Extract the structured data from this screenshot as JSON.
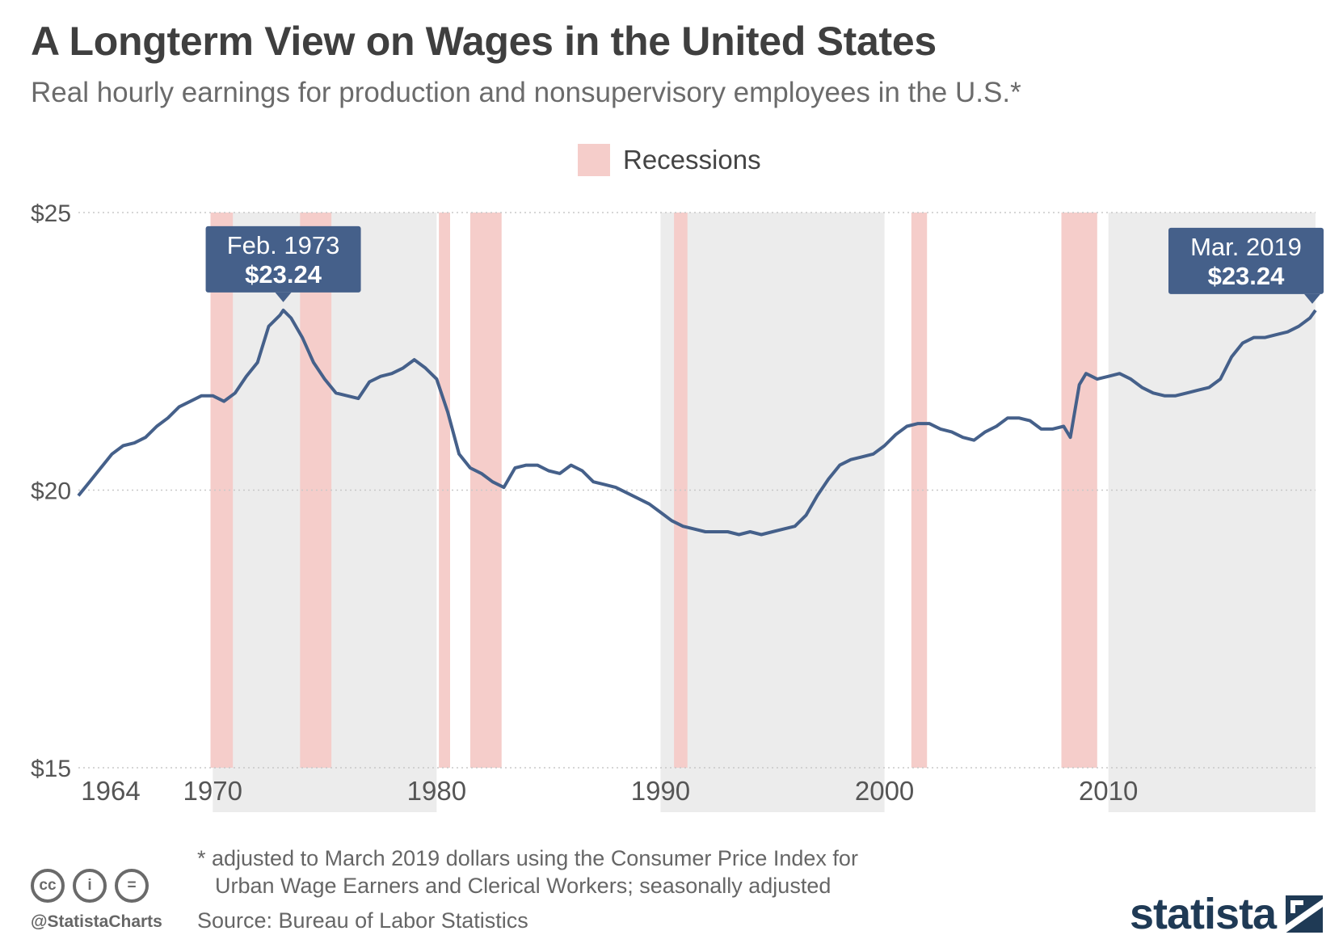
{
  "title": "A Longterm View on Wages in the United States",
  "subtitle": "Real hourly earnings for production and nonsupervisory employees in the U.S.*",
  "legend": {
    "label": "Recessions",
    "color": "#f5cdca"
  },
  "chart_data": {
    "type": "line",
    "title": "A Longterm View on Wages in the United States",
    "subtitle": "Real hourly earnings for production and nonsupervisory employees in the U.S.*",
    "xlabel": "",
    "ylabel": "",
    "y_ticks": [
      {
        "value": 15,
        "label": "$15"
      },
      {
        "value": 20,
        "label": "$20"
      },
      {
        "value": 25,
        "label": "$25"
      }
    ],
    "ylim": [
      15,
      25
    ],
    "xlim": [
      1964.0,
      2019.25
    ],
    "x_ticks": [
      {
        "value": 1964,
        "label": "1964"
      },
      {
        "value": 1970,
        "label": "1970"
      },
      {
        "value": 1980,
        "label": "1980"
      },
      {
        "value": 1990,
        "label": "1990"
      },
      {
        "value": 2000,
        "label": "2000"
      },
      {
        "value": 2010,
        "label": "2010"
      }
    ],
    "decade_bands": [
      [
        1970,
        1980
      ],
      [
        1990,
        2000
      ],
      [
        2010,
        2019.25
      ]
    ],
    "recessions": [
      [
        1969.9,
        1970.9
      ],
      [
        1973.9,
        1975.3
      ],
      [
        1980.1,
        1980.6
      ],
      [
        1981.5,
        1982.9
      ],
      [
        1990.6,
        1991.2
      ],
      [
        2001.2,
        2001.9
      ],
      [
        2007.9,
        2009.5
      ]
    ],
    "grid": true,
    "series": [
      {
        "color": "#45608a",
        "points": [
          [
            1964.0,
            19.9
          ],
          [
            1964.5,
            20.15
          ],
          [
            1965.0,
            20.4
          ],
          [
            1965.5,
            20.65
          ],
          [
            1966.0,
            20.8
          ],
          [
            1966.5,
            20.85
          ],
          [
            1967.0,
            20.95
          ],
          [
            1967.5,
            21.15
          ],
          [
            1968.0,
            21.3
          ],
          [
            1968.5,
            21.5
          ],
          [
            1969.0,
            21.6
          ],
          [
            1969.5,
            21.7
          ],
          [
            1970.0,
            21.7
          ],
          [
            1970.5,
            21.6
          ],
          [
            1971.0,
            21.75
          ],
          [
            1971.5,
            22.05
          ],
          [
            1972.0,
            22.3
          ],
          [
            1972.5,
            22.95
          ],
          [
            1973.0,
            23.15
          ],
          [
            1973.15,
            23.24
          ],
          [
            1973.5,
            23.1
          ],
          [
            1974.0,
            22.75
          ],
          [
            1974.5,
            22.3
          ],
          [
            1975.0,
            22.0
          ],
          [
            1975.5,
            21.75
          ],
          [
            1976.0,
            21.7
          ],
          [
            1976.5,
            21.65
          ],
          [
            1977.0,
            21.95
          ],
          [
            1977.5,
            22.05
          ],
          [
            1978.0,
            22.1
          ],
          [
            1978.5,
            22.2
          ],
          [
            1979.0,
            22.35
          ],
          [
            1979.5,
            22.2
          ],
          [
            1980.0,
            22.0
          ],
          [
            1980.5,
            21.4
          ],
          [
            1981.0,
            20.65
          ],
          [
            1981.5,
            20.4
          ],
          [
            1982.0,
            20.3
          ],
          [
            1982.5,
            20.15
          ],
          [
            1983.0,
            20.05
          ],
          [
            1983.5,
            20.4
          ],
          [
            1984.0,
            20.45
          ],
          [
            1984.5,
            20.45
          ],
          [
            1985.0,
            20.35
          ],
          [
            1985.5,
            20.3
          ],
          [
            1986.0,
            20.45
          ],
          [
            1986.5,
            20.35
          ],
          [
            1987.0,
            20.15
          ],
          [
            1987.5,
            20.1
          ],
          [
            1988.0,
            20.05
          ],
          [
            1988.5,
            19.95
          ],
          [
            1989.0,
            19.85
          ],
          [
            1989.5,
            19.75
          ],
          [
            1990.0,
            19.6
          ],
          [
            1990.5,
            19.45
          ],
          [
            1991.0,
            19.35
          ],
          [
            1991.5,
            19.3
          ],
          [
            1992.0,
            19.25
          ],
          [
            1992.5,
            19.25
          ],
          [
            1993.0,
            19.25
          ],
          [
            1993.5,
            19.2
          ],
          [
            1994.0,
            19.25
          ],
          [
            1994.5,
            19.2
          ],
          [
            1995.0,
            19.25
          ],
          [
            1995.5,
            19.3
          ],
          [
            1996.0,
            19.35
          ],
          [
            1996.5,
            19.55
          ],
          [
            1997.0,
            19.9
          ],
          [
            1997.5,
            20.2
          ],
          [
            1998.0,
            20.45
          ],
          [
            1998.5,
            20.55
          ],
          [
            1999.0,
            20.6
          ],
          [
            1999.5,
            20.65
          ],
          [
            2000.0,
            20.8
          ],
          [
            2000.5,
            21.0
          ],
          [
            2001.0,
            21.15
          ],
          [
            2001.5,
            21.2
          ],
          [
            2002.0,
            21.2
          ],
          [
            2002.5,
            21.1
          ],
          [
            2003.0,
            21.05
          ],
          [
            2003.5,
            20.95
          ],
          [
            2004.0,
            20.9
          ],
          [
            2004.5,
            21.05
          ],
          [
            2005.0,
            21.15
          ],
          [
            2005.5,
            21.3
          ],
          [
            2006.0,
            21.3
          ],
          [
            2006.5,
            21.25
          ],
          [
            2007.0,
            21.1
          ],
          [
            2007.5,
            21.1
          ],
          [
            2008.0,
            21.15
          ],
          [
            2008.3,
            20.95
          ],
          [
            2008.7,
            21.9
          ],
          [
            2009.0,
            22.1
          ],
          [
            2009.5,
            22.0
          ],
          [
            2010.0,
            22.05
          ],
          [
            2010.5,
            22.1
          ],
          [
            2011.0,
            22.0
          ],
          [
            2011.5,
            21.85
          ],
          [
            2012.0,
            21.75
          ],
          [
            2012.5,
            21.7
          ],
          [
            2013.0,
            21.7
          ],
          [
            2013.5,
            21.75
          ],
          [
            2014.0,
            21.8
          ],
          [
            2014.5,
            21.85
          ],
          [
            2015.0,
            22.0
          ],
          [
            2015.5,
            22.4
          ],
          [
            2016.0,
            22.65
          ],
          [
            2016.5,
            22.75
          ],
          [
            2017.0,
            22.75
          ],
          [
            2017.5,
            22.8
          ],
          [
            2018.0,
            22.85
          ],
          [
            2018.5,
            22.95
          ],
          [
            2019.0,
            23.1
          ],
          [
            2019.25,
            23.24
          ]
        ]
      }
    ],
    "annotations": [
      {
        "date": "Feb. 1973",
        "value": "$23.24",
        "x": 1973.15,
        "y": 23.24
      },
      {
        "date": "Mar. 2019",
        "value": "$23.24",
        "x": 2019.25,
        "y": 23.24
      }
    ]
  },
  "footnote": {
    "line1": "* adjusted to March 2019 dollars using the Consumer Price Index for",
    "line2": "Urban Wage Earners and Clerical Workers; seasonally adjusted"
  },
  "source": "Source: Bureau of Labor Statistics",
  "license_icons": [
    {
      "icon": "cc-icon",
      "glyph": "cc"
    },
    {
      "icon": "by-icon",
      "glyph": "i"
    },
    {
      "icon": "nd-icon",
      "glyph": "="
    }
  ],
  "handle": "@StatistaCharts",
  "brand": "statista"
}
